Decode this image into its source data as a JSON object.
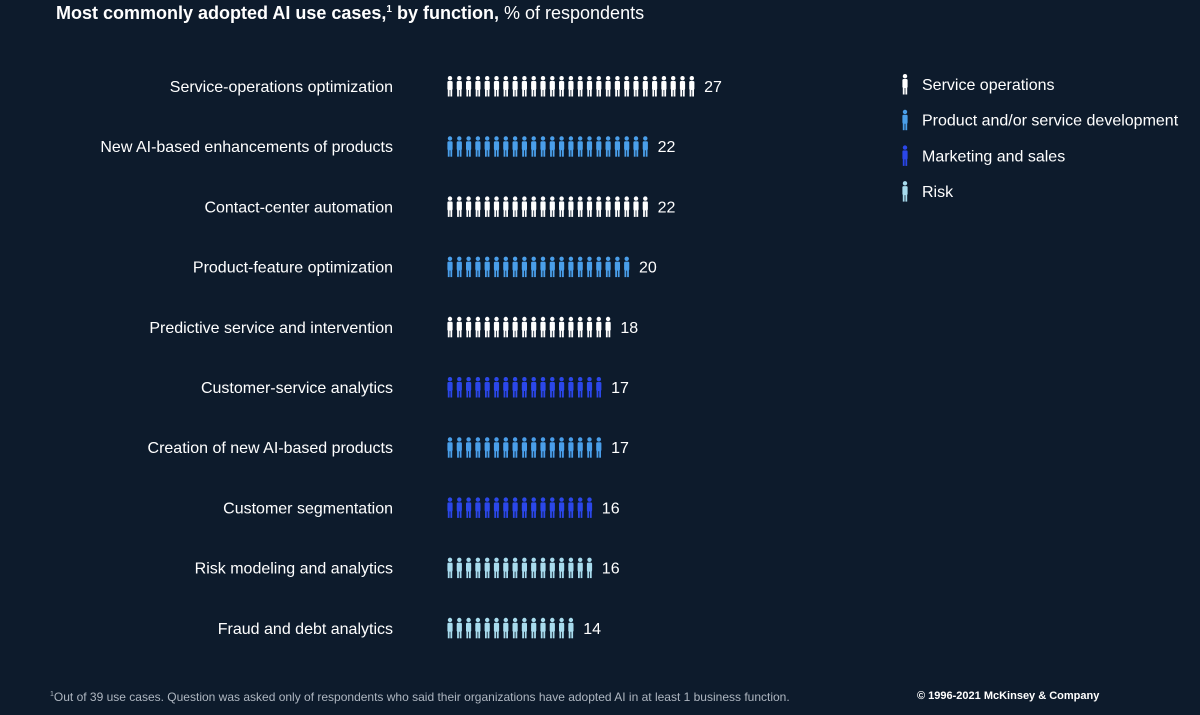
{
  "title": {
    "bold": "Most commonly adopted AI use cases,",
    "sup": "1",
    "bold2": " by function,",
    "rest": " % of respondents"
  },
  "chart_data": {
    "type": "bar",
    "style": "pictogram",
    "unit": "% of respondents",
    "categories": [
      "Service-operations optimization",
      "New AI-based enhancements of products",
      "Contact-center automation",
      "Product-feature optimization",
      "Predictive service and intervention",
      "Customer-service analytics",
      "Creation of new AI-based products",
      "Customer segmentation",
      "Risk modeling and analytics",
      "Fraud and debt analytics"
    ],
    "values": [
      27,
      22,
      22,
      20,
      18,
      17,
      17,
      16,
      16,
      14
    ],
    "functions": [
      "Service operations",
      "Product and/or service development",
      "Service operations",
      "Product and/or service development",
      "Service operations",
      "Marketing and sales",
      "Product and/or service development",
      "Marketing and sales",
      "Risk",
      "Risk"
    ],
    "legend": [
      {
        "name": "Service operations",
        "color": "#ffffff"
      },
      {
        "name": "Product and/or service development",
        "color": "#4a9fea"
      },
      {
        "name": "Marketing and sales",
        "color": "#2b47ea"
      },
      {
        "name": "Risk",
        "color": "#a8dcee"
      }
    ],
    "legend_position": "top-right"
  },
  "footnote": {
    "sup": "1",
    "text": "Out of 39 use cases. Question was asked only of respondents who said their organizations have adopted AI in at least 1 business function."
  },
  "copyright": "© 1996-2021 McKinsey & Company"
}
